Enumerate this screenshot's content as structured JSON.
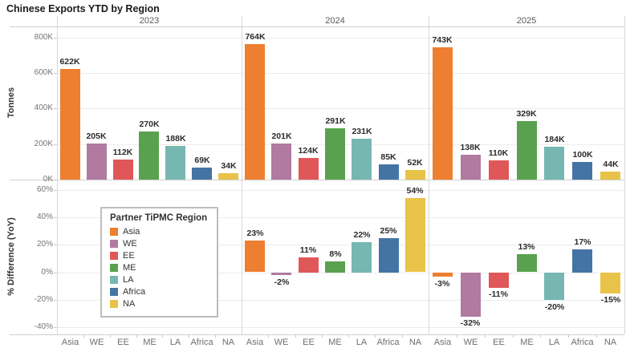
{
  "title": "Chinese Exports YTD by Region",
  "legend": {
    "title": "Partner TiPMC Region",
    "items": [
      {
        "label": "Asia",
        "color": "#EE7E30"
      },
      {
        "label": "WE",
        "color": "#B07AA1"
      },
      {
        "label": "EE",
        "color": "#E05759"
      },
      {
        "label": "ME",
        "color": "#59A14F"
      },
      {
        "label": "LA",
        "color": "#76B7B2"
      },
      {
        "label": "Africa",
        "color": "#4474A4"
      },
      {
        "label": "NA",
        "color": "#E9C349"
      }
    ]
  },
  "chart_data": [
    {
      "type": "bar",
      "panel": "top",
      "ylabel": "Tonnes",
      "unit": "thousand tonnes",
      "categories": [
        "Asia",
        "WE",
        "EE",
        "ME",
        "LA",
        "Africa",
        "NA"
      ],
      "facets": [
        "2023",
        "2024",
        "2025"
      ],
      "ylim": [
        0,
        870
      ],
      "yticks": [
        "0K",
        "200K",
        "400K",
        "600K",
        "800K"
      ],
      "grid": true,
      "series": [
        {
          "facet": "2023",
          "values": [
            622,
            205,
            112,
            270,
            188,
            69,
            34
          ],
          "labels": [
            "622K",
            "205K",
            "112K",
            "270K",
            "188K",
            "69K",
            "34K"
          ]
        },
        {
          "facet": "2024",
          "values": [
            764,
            201,
            124,
            291,
            231,
            85,
            52
          ],
          "labels": [
            "764K",
            "201K",
            "124K",
            "291K",
            "231K",
            "85K",
            "52K"
          ]
        },
        {
          "facet": "2025",
          "values": [
            743,
            138,
            110,
            329,
            184,
            100,
            44
          ],
          "labels": [
            "743K",
            "138K",
            "110K",
            "329K",
            "184K",
            "100K",
            "44K"
          ]
        }
      ]
    },
    {
      "type": "bar",
      "panel": "bottom",
      "ylabel": "% Difference (YoY)",
      "unit": "percent",
      "categories": [
        "Asia",
        "WE",
        "EE",
        "ME",
        "LA",
        "Africa",
        "NA"
      ],
      "facets": [
        "2023",
        "2024",
        "2025"
      ],
      "ylim": [
        -45,
        62
      ],
      "yticks": [
        "-40%",
        "-20%",
        "0%",
        "20%",
        "40%",
        "60%"
      ],
      "grid": true,
      "series": [
        {
          "facet": "2023",
          "values": [
            null,
            null,
            null,
            null,
            null,
            null,
            null
          ],
          "labels": [
            null,
            null,
            null,
            null,
            null,
            null,
            null
          ]
        },
        {
          "facet": "2024",
          "values": [
            23,
            -2,
            11,
            8,
            22,
            25,
            54
          ],
          "labels": [
            "23%",
            "-2%",
            "11%",
            "8%",
            "22%",
            "25%",
            "54%"
          ]
        },
        {
          "facet": "2025",
          "values": [
            -3,
            -32,
            -11,
            13,
            -20,
            17,
            -15
          ],
          "labels": [
            "-3%",
            "-32%",
            "-11%",
            "13%",
            "-20%",
            "17%",
            "-15%"
          ]
        }
      ]
    }
  ]
}
